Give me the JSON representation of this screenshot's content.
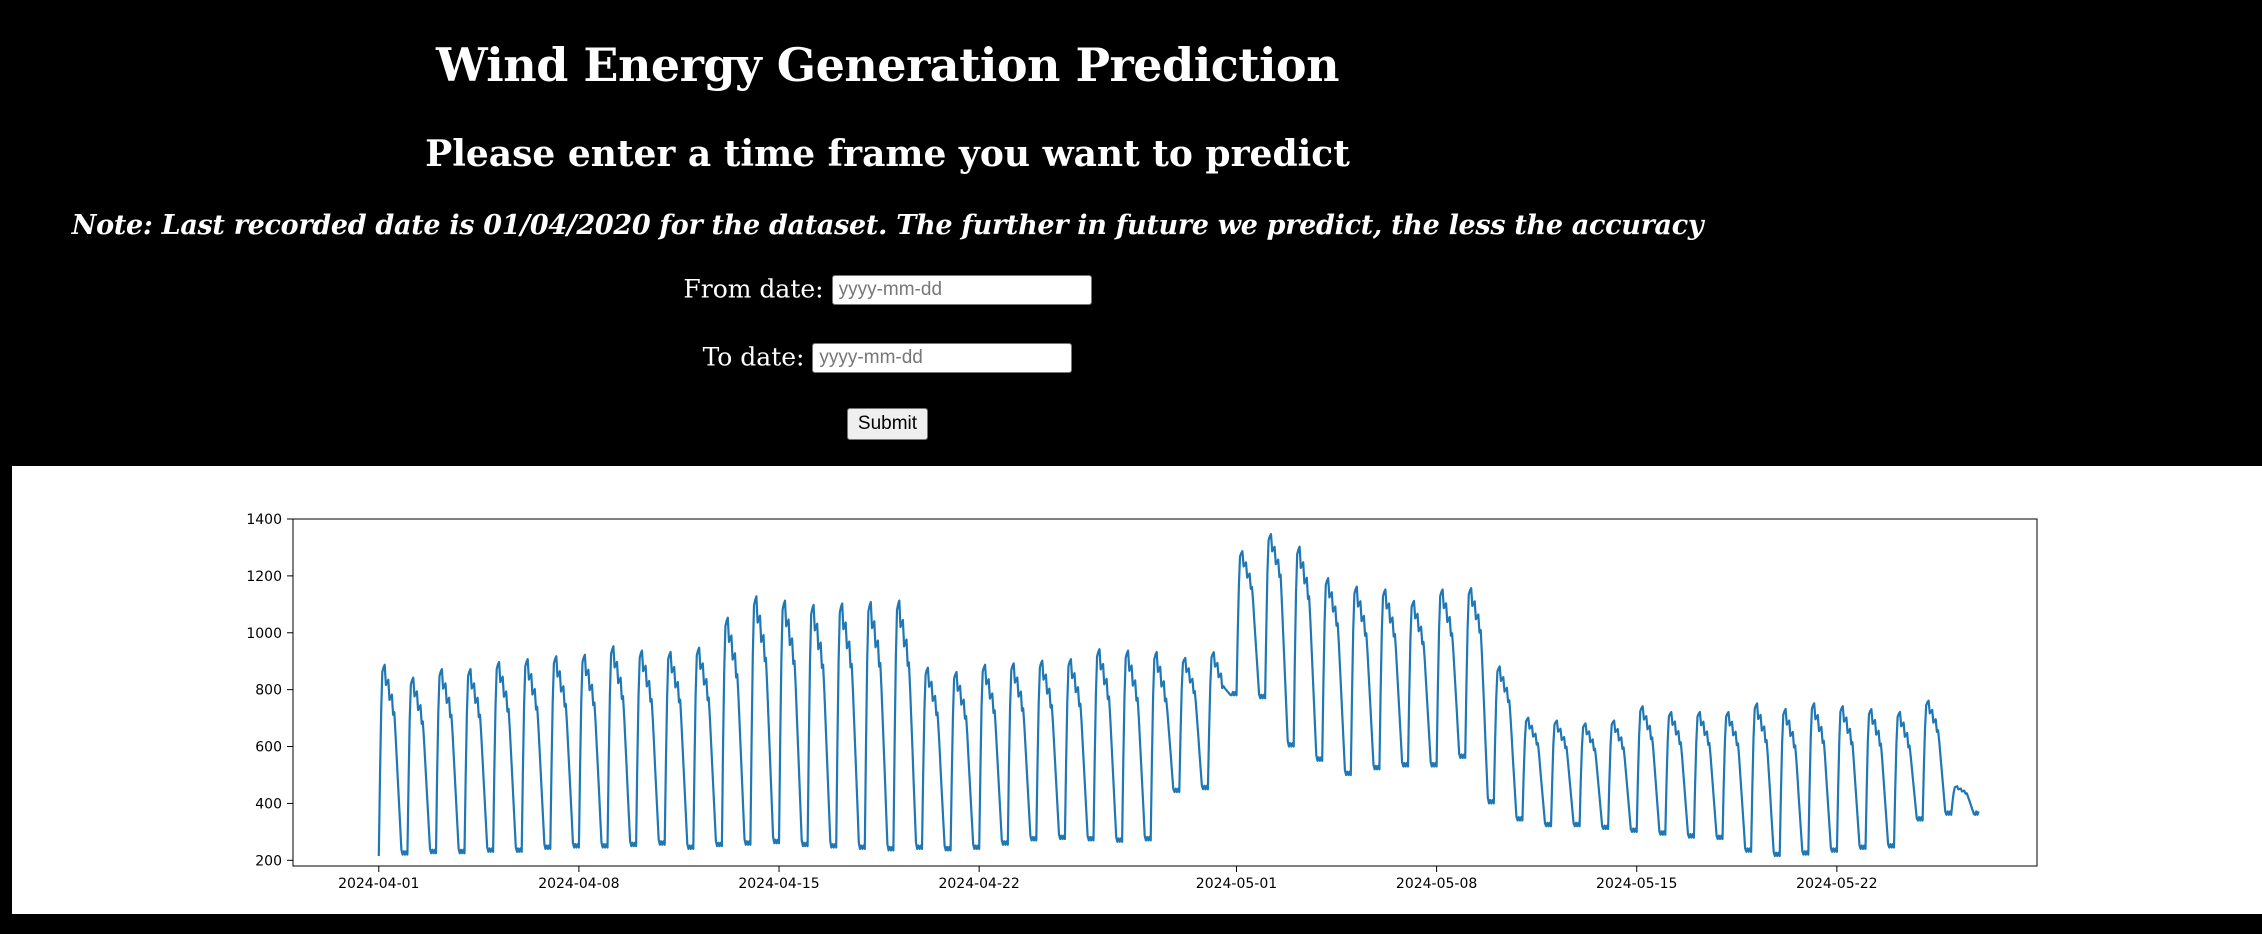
{
  "page": {
    "title": "Wind Energy Generation Prediction",
    "subtitle": "Please enter a time frame you want to predict",
    "note": "Note: Last recorded date is 01/04/2020 for the dataset. The further in future we predict, the less the accuracy"
  },
  "form": {
    "from_label": "From date:",
    "from_placeholder": "yyyy-mm-dd",
    "from_value": "",
    "to_label": "To date:",
    "to_placeholder": "yyyy-mm-dd",
    "to_value": "",
    "submit_label": "Submit"
  },
  "colors": {
    "background": "#000000",
    "text": "#ffffff",
    "chart_background": "#ffffff",
    "series_line": "#1f77b4"
  },
  "chart_data": {
    "type": "line",
    "title": "",
    "xlabel": "",
    "ylabel": "",
    "grid": false,
    "legend": "none",
    "x_start": "2024-04-01",
    "x_end": "2024-05-26",
    "xlim": [
      "2024-03-29",
      "2024-05-29"
    ],
    "ylim": [
      180,
      1400
    ],
    "x_ticks": [
      "2024-04-01",
      "2024-04-08",
      "2024-04-15",
      "2024-04-22",
      "2024-05-01",
      "2024-05-08",
      "2024-05-15",
      "2024-05-22"
    ],
    "y_ticks": [
      200,
      400,
      600,
      800,
      1000,
      1200,
      1400
    ],
    "daily": [
      {
        "date": "2024-04-01",
        "min": 215,
        "max": 885
      },
      {
        "date": "2024-04-02",
        "min": 220,
        "max": 840
      },
      {
        "date": "2024-04-03",
        "min": 225,
        "max": 870
      },
      {
        "date": "2024-04-04",
        "min": 225,
        "max": 870
      },
      {
        "date": "2024-04-05",
        "min": 230,
        "max": 895
      },
      {
        "date": "2024-04-06",
        "min": 230,
        "max": 905
      },
      {
        "date": "2024-04-07",
        "min": 240,
        "max": 915
      },
      {
        "date": "2024-04-08",
        "min": 245,
        "max": 920
      },
      {
        "date": "2024-04-09",
        "min": 245,
        "max": 950
      },
      {
        "date": "2024-04-10",
        "min": 250,
        "max": 935
      },
      {
        "date": "2024-04-11",
        "min": 255,
        "max": 930
      },
      {
        "date": "2024-04-12",
        "min": 240,
        "max": 945
      },
      {
        "date": "2024-04-13",
        "min": 250,
        "max": 1050
      },
      {
        "date": "2024-04-14",
        "min": 255,
        "max": 1125
      },
      {
        "date": "2024-04-15",
        "min": 260,
        "max": 1110
      },
      {
        "date": "2024-04-16",
        "min": 250,
        "max": 1095
      },
      {
        "date": "2024-04-17",
        "min": 245,
        "max": 1100
      },
      {
        "date": "2024-04-18",
        "min": 240,
        "max": 1105
      },
      {
        "date": "2024-04-19",
        "min": 235,
        "max": 1110
      },
      {
        "date": "2024-04-20",
        "min": 240,
        "max": 875
      },
      {
        "date": "2024-04-21",
        "min": 235,
        "max": 860
      },
      {
        "date": "2024-04-22",
        "min": 240,
        "max": 885
      },
      {
        "date": "2024-04-23",
        "min": 255,
        "max": 890
      },
      {
        "date": "2024-04-24",
        "min": 270,
        "max": 900
      },
      {
        "date": "2024-04-25",
        "min": 275,
        "max": 905
      },
      {
        "date": "2024-04-26",
        "min": 270,
        "max": 940
      },
      {
        "date": "2024-04-27",
        "min": 265,
        "max": 935
      },
      {
        "date": "2024-04-28",
        "min": 270,
        "max": 930
      },
      {
        "date": "2024-04-29",
        "min": 440,
        "max": 910
      },
      {
        "date": "2024-04-30",
        "min": 450,
        "max": 930
      },
      {
        "date": "2024-05-01",
        "min": 780,
        "max": 1285
      },
      {
        "date": "2024-05-02",
        "min": 770,
        "max": 1345
      },
      {
        "date": "2024-05-03",
        "min": 600,
        "max": 1300
      },
      {
        "date": "2024-05-04",
        "min": 550,
        "max": 1190
      },
      {
        "date": "2024-05-05",
        "min": 500,
        "max": 1160
      },
      {
        "date": "2024-05-06",
        "min": 520,
        "max": 1150
      },
      {
        "date": "2024-05-07",
        "min": 530,
        "max": 1110
      },
      {
        "date": "2024-05-08",
        "min": 530,
        "max": 1150
      },
      {
        "date": "2024-05-09",
        "min": 560,
        "max": 1155
      },
      {
        "date": "2024-05-10",
        "min": 400,
        "max": 880
      },
      {
        "date": "2024-05-11",
        "min": 340,
        "max": 700
      },
      {
        "date": "2024-05-12",
        "min": 320,
        "max": 690
      },
      {
        "date": "2024-05-13",
        "min": 320,
        "max": 680
      },
      {
        "date": "2024-05-14",
        "min": 310,
        "max": 690
      },
      {
        "date": "2024-05-15",
        "min": 300,
        "max": 740
      },
      {
        "date": "2024-05-16",
        "min": 290,
        "max": 720
      },
      {
        "date": "2024-05-17",
        "min": 280,
        "max": 720
      },
      {
        "date": "2024-05-18",
        "min": 275,
        "max": 720
      },
      {
        "date": "2024-05-19",
        "min": 230,
        "max": 750
      },
      {
        "date": "2024-05-20",
        "min": 215,
        "max": 730
      },
      {
        "date": "2024-05-21",
        "min": 220,
        "max": 750
      },
      {
        "date": "2024-05-22",
        "min": 230,
        "max": 740
      },
      {
        "date": "2024-05-23",
        "min": 240,
        "max": 730
      },
      {
        "date": "2024-05-24",
        "min": 245,
        "max": 720
      },
      {
        "date": "2024-05-25",
        "min": 340,
        "max": 760
      },
      {
        "date": "2024-05-26",
        "min": 360,
        "max": 460
      }
    ]
  }
}
